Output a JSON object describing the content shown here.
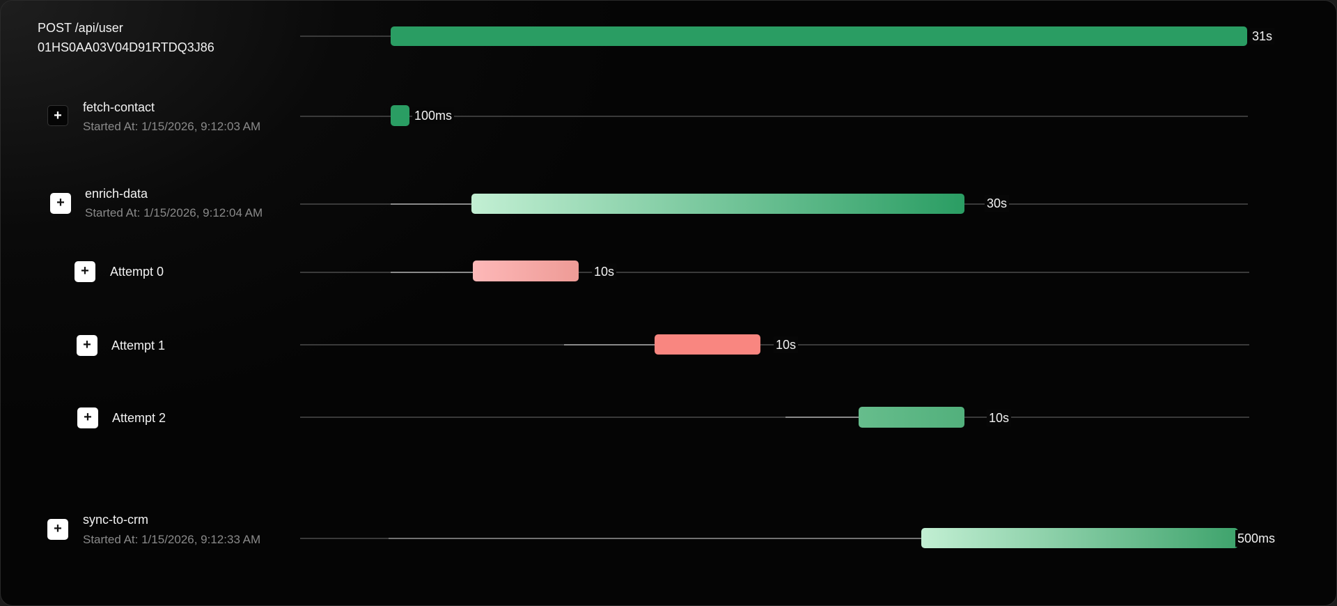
{
  "header": {
    "title": "POST /api/user",
    "id": "01HS0AA03V04D91RTDQ3J86",
    "duration": "31s"
  },
  "rows": [
    {
      "name": "fetch-contact",
      "started": "Started At: 1/15/2026, 9:12:03 AM",
      "duration": "100ms",
      "expand": "+"
    },
    {
      "name": "enrich-data",
      "started": "Started At: 1/15/2026, 9:12:04 AM",
      "duration": "30s",
      "expand": "+"
    },
    {
      "name": "Attempt 0",
      "duration": "10s",
      "expand": "+"
    },
    {
      "name": "Attempt 1",
      "duration": "10s",
      "expand": "+"
    },
    {
      "name": "Attempt 2",
      "duration": "10s",
      "expand": "+"
    },
    {
      "name": "sync-to-crm",
      "started": "Started At: 1/15/2026, 9:12:33 AM",
      "duration": "500ms",
      "expand": "+"
    }
  ],
  "colors": {
    "success": "#2a9d63",
    "success_light": "#c2efd3",
    "failed": "#f98680",
    "failed_light": "#fdb8b8"
  }
}
